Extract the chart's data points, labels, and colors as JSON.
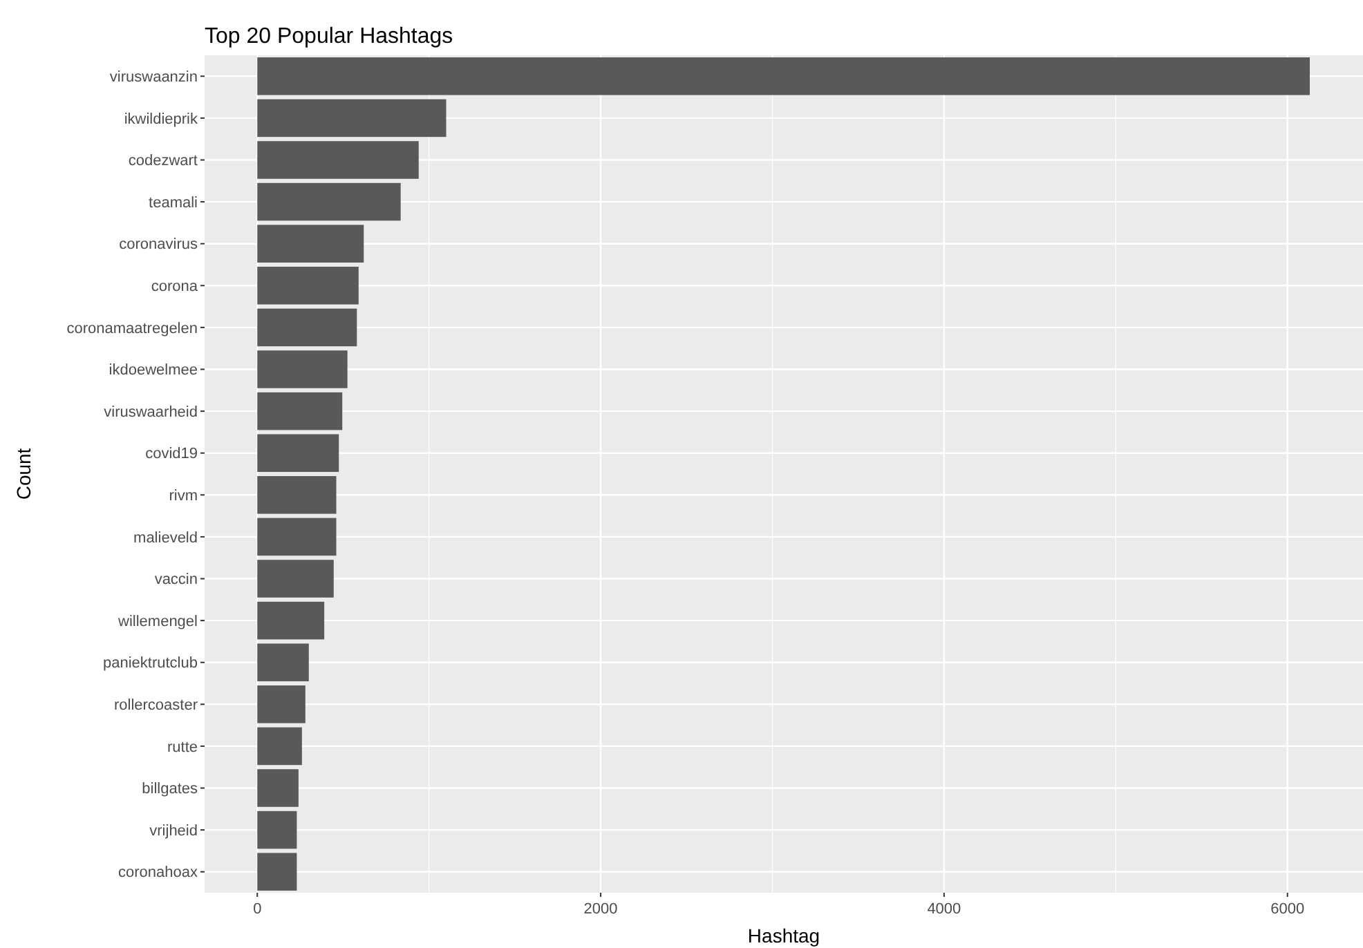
{
  "chart_data": {
    "type": "bar",
    "orientation": "horizontal",
    "title": "Top 20 Popular Hashtags",
    "xlabel": "Hashtag",
    "ylabel": "Count",
    "categories": [
      "viruswaanzin",
      "ikwildieprik",
      "codezwart",
      "teamali",
      "coronavirus",
      "corona",
      "coronamaatregelen",
      "ikdoewelmee",
      "viruswaarheid",
      "covid19",
      "rivm",
      "malieveld",
      "vaccin",
      "willemengel",
      "paniektrutclub",
      "rollercoaster",
      "rutte",
      "billgates",
      "vrijheid",
      "coronahoax"
    ],
    "values": [
      6130,
      1100,
      940,
      835,
      620,
      590,
      580,
      525,
      495,
      475,
      460,
      460,
      445,
      390,
      300,
      280,
      260,
      240,
      230,
      230
    ],
    "color": "#595959",
    "xlim": [
      -307,
      6440
    ],
    "xticks": [
      0,
      2000,
      4000,
      6000
    ],
    "grid": true
  }
}
